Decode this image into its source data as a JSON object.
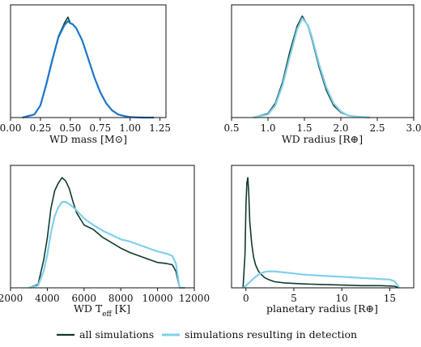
{
  "chart_data": [
    {
      "type": "line",
      "xlabel": "WD mass [M⊙]",
      "ylabel": "",
      "xlim": [
        0.0,
        1.3
      ],
      "xticks": [
        "0.00",
        "0.25",
        "0.50",
        "0.75",
        "1.00",
        "1.25"
      ],
      "tick_values": [
        0.0,
        0.25,
        0.5,
        0.75,
        1.0,
        1.25
      ],
      "ylim": [
        0,
        1.0
      ],
      "series": [
        {
          "name": "all simulations",
          "color": "#0f3b2e",
          "x": [
            0.1,
            0.2,
            0.25,
            0.3,
            0.35,
            0.4,
            0.45,
            0.48,
            0.5,
            0.52,
            0.55,
            0.6,
            0.65,
            0.7,
            0.75,
            0.8,
            0.85,
            0.9,
            0.95,
            1.0,
            1.1,
            1.2
          ],
          "y": [
            0.0,
            0.03,
            0.12,
            0.34,
            0.58,
            0.8,
            0.93,
            0.99,
            0.93,
            0.92,
            0.88,
            0.76,
            0.58,
            0.4,
            0.25,
            0.14,
            0.07,
            0.03,
            0.015,
            0.005,
            0.0,
            0.0
          ]
        },
        {
          "name": "simulations resulting in detection",
          "color": "#1f77c9",
          "x": [
            0.1,
            0.2,
            0.25,
            0.3,
            0.35,
            0.4,
            0.45,
            0.48,
            0.5,
            0.52,
            0.55,
            0.6,
            0.65,
            0.7,
            0.75,
            0.8,
            0.85,
            0.9,
            0.95,
            1.0,
            1.1,
            1.2
          ],
          "y": [
            0.0,
            0.03,
            0.12,
            0.33,
            0.57,
            0.79,
            0.91,
            0.95,
            0.93,
            0.92,
            0.88,
            0.76,
            0.58,
            0.4,
            0.25,
            0.14,
            0.07,
            0.03,
            0.015,
            0.005,
            0.0,
            0.0
          ]
        }
      ]
    },
    {
      "type": "line",
      "xlabel": "WD radius [R⊕]",
      "ylabel": "",
      "xlim": [
        0.5,
        3.0
      ],
      "xticks": [
        "0.5",
        "1.0",
        "1.5",
        "2.0",
        "2.5",
        "3.0"
      ],
      "tick_values": [
        0.5,
        1.0,
        1.5,
        2.0,
        2.5,
        3.0
      ],
      "ylim": [
        0,
        1.0
      ],
      "series": [
        {
          "name": "all simulations",
          "color": "#0f3b2e",
          "x": [
            0.8,
            1.0,
            1.1,
            1.2,
            1.3,
            1.4,
            1.47,
            1.55,
            1.6,
            1.7,
            1.8,
            1.9,
            2.0,
            2.1,
            2.2,
            2.4
          ],
          "y": [
            0.0,
            0.04,
            0.14,
            0.35,
            0.65,
            0.9,
            1.0,
            0.9,
            0.78,
            0.5,
            0.27,
            0.12,
            0.05,
            0.02,
            0.01,
            0.0
          ]
        },
        {
          "name": "simulations resulting in detection",
          "color": "#7fd0ec",
          "x": [
            0.8,
            1.0,
            1.1,
            1.2,
            1.3,
            1.4,
            1.47,
            1.55,
            1.6,
            1.7,
            1.8,
            1.9,
            2.0,
            2.1,
            2.2,
            2.4
          ],
          "y": [
            0.0,
            0.03,
            0.12,
            0.32,
            0.6,
            0.87,
            0.98,
            0.91,
            0.8,
            0.53,
            0.3,
            0.14,
            0.06,
            0.02,
            0.01,
            0.0
          ]
        }
      ]
    },
    {
      "type": "line",
      "xlabel": "WD T",
      "xlabel_sub": "eff",
      "xlabel_unit": " [K]",
      "ylabel": "",
      "xlim": [
        2000,
        12000
      ],
      "xticks": [
        "2000",
        "4000",
        "6000",
        "8000",
        "10000",
        "12000"
      ],
      "tick_values": [
        2000,
        4000,
        6000,
        8000,
        10000,
        12000
      ],
      "ylim": [
        0,
        1.0
      ],
      "series": [
        {
          "name": "all simulations",
          "color": "#0f3b2e",
          "x": [
            3000,
            3500,
            3800,
            4000,
            4200,
            4400,
            4600,
            4800,
            5000,
            5200,
            5400,
            5600,
            6000,
            6500,
            7000,
            7500,
            8000,
            8500,
            9000,
            9500,
            10000,
            10500,
            10800,
            11000,
            11200,
            11500
          ],
          "y": [
            0.0,
            0.03,
            0.25,
            0.45,
            0.72,
            0.88,
            0.95,
            1.0,
            0.97,
            0.9,
            0.78,
            0.68,
            0.57,
            0.53,
            0.46,
            0.41,
            0.36,
            0.32,
            0.29,
            0.26,
            0.23,
            0.22,
            0.21,
            0.15,
            0.0,
            0.0
          ]
        },
        {
          "name": "simulations resulting in detection",
          "color": "#7fd0ec",
          "x": [
            3000,
            3500,
            3800,
            4000,
            4200,
            4400,
            4600,
            4800,
            5000,
            5200,
            5500,
            6000,
            6500,
            7000,
            7500,
            8000,
            8500,
            9000,
            9500,
            10000,
            10500,
            10800,
            11000,
            11200,
            11500
          ],
          "y": [
            0.0,
            0.02,
            0.15,
            0.3,
            0.5,
            0.65,
            0.73,
            0.78,
            0.78,
            0.76,
            0.72,
            0.63,
            0.57,
            0.52,
            0.48,
            0.44,
            0.42,
            0.39,
            0.36,
            0.33,
            0.31,
            0.29,
            0.22,
            0.0,
            0.0
          ]
        }
      ]
    },
    {
      "type": "line",
      "xlabel": "planetary radius [R⊕]",
      "ylabel": "",
      "xlim": [
        -1.5,
        17.5
      ],
      "xticks": [
        "0",
        "5",
        "10",
        "15"
      ],
      "tick_values": [
        0,
        5,
        10,
        15
      ],
      "ylim": [
        0,
        1.0
      ],
      "series": [
        {
          "name": "all simulations",
          "color": "#0f3b2e",
          "x": [
            -0.3,
            -0.1,
            0.0,
            0.1,
            0.2,
            0.3,
            0.4,
            0.6,
            0.8,
            1.0,
            1.3,
            1.6,
            2.0,
            2.5,
            3.0,
            4.0,
            5.0,
            6.0,
            8.0,
            10.0,
            12.0,
            14.0,
            15.5,
            16.0
          ],
          "y": [
            0.0,
            0.3,
            0.75,
            0.95,
            1.0,
            0.85,
            0.6,
            0.4,
            0.28,
            0.21,
            0.15,
            0.12,
            0.09,
            0.07,
            0.055,
            0.045,
            0.04,
            0.035,
            0.03,
            0.025,
            0.02,
            0.02,
            0.015,
            0.0
          ]
        },
        {
          "name": "simulations resulting in detection",
          "color": "#7fd0ec",
          "x": [
            -0.3,
            0.0,
            0.5,
            1.0,
            1.5,
            2.0,
            2.5,
            3.0,
            4.0,
            5.0,
            6.0,
            8.0,
            10.0,
            12.0,
            14.0,
            15.0,
            15.5,
            16.0
          ],
          "y": [
            0.0,
            0.02,
            0.06,
            0.1,
            0.13,
            0.145,
            0.15,
            0.148,
            0.14,
            0.13,
            0.12,
            0.11,
            0.1,
            0.09,
            0.08,
            0.075,
            0.06,
            0.0
          ]
        }
      ]
    }
  ],
  "legend": {
    "placement": "bottom",
    "items": [
      {
        "label": "all simulations",
        "color": "#0f3b2e"
      },
      {
        "label": "simulations resulting in detection",
        "color": "#7fd0ec"
      }
    ]
  }
}
